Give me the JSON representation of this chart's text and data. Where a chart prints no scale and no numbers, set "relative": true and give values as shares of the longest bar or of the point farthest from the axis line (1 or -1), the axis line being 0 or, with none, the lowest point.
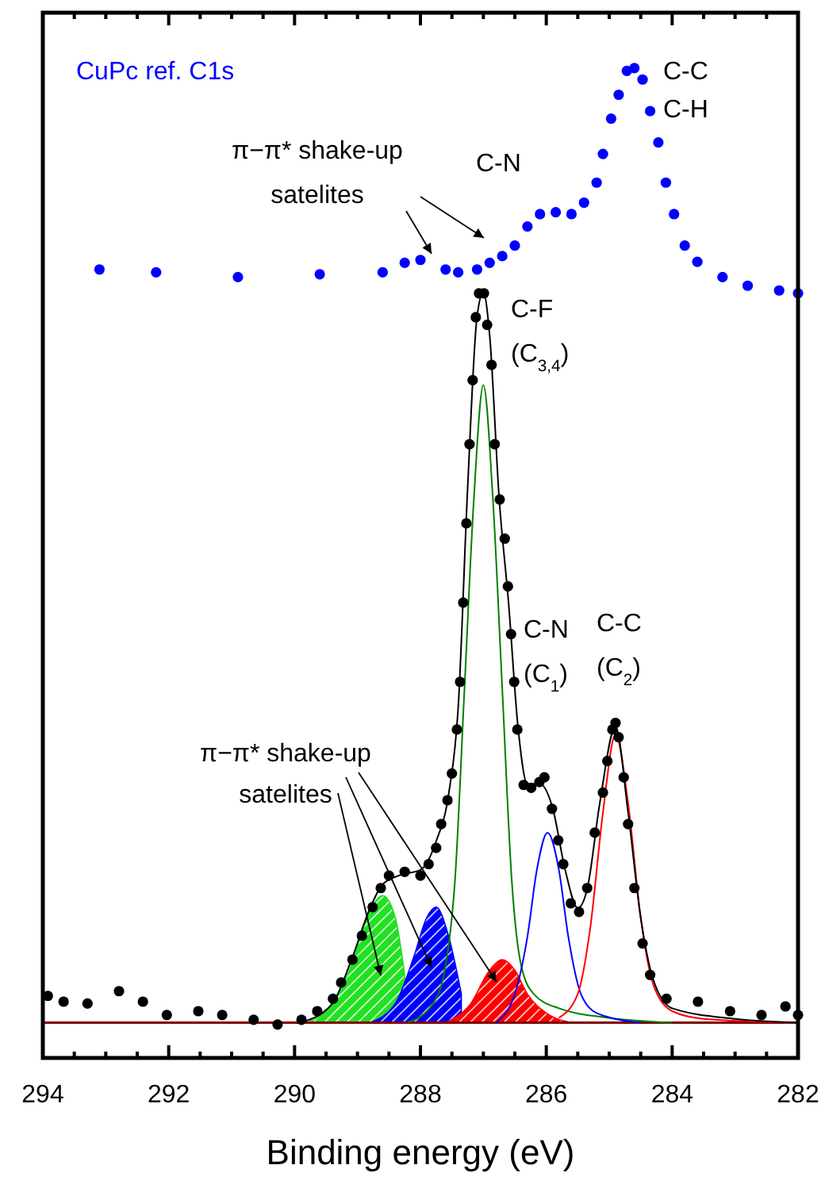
{
  "chart_data": {
    "type": "scatter",
    "relative": true,
    "xlabel": "Binding energy (eV)",
    "xlim": [
      294,
      282
    ],
    "xticks": [
      294,
      292,
      290,
      288,
      286,
      284,
      282
    ],
    "ref_lines": [
      {
        "axis": "y",
        "value": 0,
        "color": "#800000"
      }
    ],
    "series": [
      {
        "name": "CuPc ref. C1s",
        "type": "scatter",
        "marker": "circle",
        "color": "#0000ff",
        "x": [
          293.1,
          292.2,
          290.9,
          289.6,
          288.6,
          288.25,
          288.0,
          287.6,
          287.4,
          287.1,
          286.9,
          286.7,
          286.5,
          286.3,
          286.1,
          285.85,
          285.6,
          285.4,
          285.2,
          285.1,
          284.97,
          284.85,
          284.72,
          284.6,
          284.47,
          284.35,
          284.22,
          284.1,
          283.97,
          283.8,
          283.6,
          283.2,
          282.8,
          282.3,
          282.0
        ],
        "values": [
          0.789,
          0.786,
          0.781,
          0.784,
          0.786,
          0.796,
          0.799,
          0.789,
          0.786,
          0.789,
          0.796,
          0.803,
          0.814,
          0.834,
          0.847,
          0.849,
          0.847,
          0.859,
          0.88,
          0.91,
          0.947,
          0.972,
          0.997,
          1.0,
          0.988,
          0.955,
          0.922,
          0.88,
          0.847,
          0.814,
          0.797,
          0.781,
          0.772,
          0.767,
          0.764
        ]
      },
      {
        "type": "area",
        "color": "#22e022",
        "x": [
          289.8,
          289.4,
          289.1,
          288.85,
          288.6,
          288.4,
          288.25
        ],
        "values": [
          0,
          0.02,
          0.06,
          0.11,
          0.133,
          0.11,
          0.05
        ]
      },
      {
        "type": "area",
        "color": "#0000ff",
        "x": [
          288.8,
          288.4,
          288.1,
          287.9,
          287.75,
          287.55,
          287.35
        ],
        "values": [
          0,
          0.02,
          0.07,
          0.11,
          0.121,
          0.09,
          0.03
        ]
      },
      {
        "type": "area",
        "color": "#ff0000",
        "x": [
          287.6,
          287.2,
          286.9,
          286.7,
          286.5,
          286.3,
          286.0,
          285.6
        ],
        "values": [
          0,
          0.02,
          0.055,
          0.066,
          0.055,
          0.03,
          0.01,
          0
        ]
      },
      {
        "type": "line",
        "marker": "none",
        "color": "#008000",
        "x": [
          288.2,
          287.8,
          287.6,
          287.45,
          287.3,
          287.15,
          287.0,
          286.85,
          286.7,
          286.55,
          286.4,
          286.2,
          285.8,
          285.0,
          284.0
        ],
        "values": [
          0,
          0.02,
          0.06,
          0.15,
          0.35,
          0.55,
          0.668,
          0.55,
          0.35,
          0.15,
          0.06,
          0.03,
          0.015,
          0.005,
          0
        ]
      },
      {
        "type": "line",
        "marker": "none",
        "color": "#0000ff",
        "x": [
          286.8,
          286.5,
          286.3,
          286.15,
          285.98,
          285.8,
          285.65,
          285.45,
          285.2,
          284.5
        ],
        "values": [
          0,
          0.03,
          0.09,
          0.16,
          0.199,
          0.16,
          0.09,
          0.03,
          0.01,
          0
        ]
      },
      {
        "type": "line",
        "marker": "none",
        "color": "#ff0000",
        "x": [
          285.8,
          285.5,
          285.3,
          285.1,
          284.9,
          284.7,
          284.5,
          284.3,
          284.0,
          283.5,
          282.0
        ],
        "values": [
          0.005,
          0.03,
          0.1,
          0.22,
          0.302,
          0.23,
          0.11,
          0.04,
          0.012,
          0.004,
          0
        ]
      },
      {
        "type": "line",
        "marker": "none",
        "color": "#000000",
        "x": [
          289.9,
          289.4,
          289.1,
          288.8,
          288.6,
          288.3,
          288.0,
          287.75,
          287.55,
          287.4,
          287.25,
          287.1,
          287.0,
          286.9,
          286.75,
          286.6,
          286.45,
          286.3,
          286.1,
          285.9,
          285.7,
          285.5,
          285.35,
          285.15,
          284.9,
          284.7,
          284.5,
          284.3,
          284.0,
          283.0,
          282.0
        ],
        "values": [
          0,
          0.02,
          0.065,
          0.12,
          0.145,
          0.155,
          0.16,
          0.19,
          0.24,
          0.33,
          0.56,
          0.74,
          0.765,
          0.72,
          0.55,
          0.44,
          0.31,
          0.25,
          0.25,
          0.225,
          0.16,
          0.12,
          0.14,
          0.23,
          0.31,
          0.22,
          0.11,
          0.045,
          0.015,
          0.004,
          0
        ]
      },
      {
        "type": "scatter",
        "marker": "circle",
        "color": "#000000",
        "x": [
          293.92,
          293.67,
          293.29,
          292.79,
          292.41,
          292.03,
          291.53,
          291.15,
          290.65,
          290.27,
          289.89,
          289.64,
          289.39,
          289.26,
          289.08,
          288.93,
          288.76,
          288.63,
          288.5,
          288.25,
          288.0,
          287.87,
          287.75,
          287.67,
          287.57,
          287.5,
          287.42,
          287.37,
          287.32,
          287.27,
          287.22,
          287.17,
          287.12,
          287.07,
          286.99,
          286.94,
          286.87,
          286.82,
          286.74,
          286.66,
          286.61,
          286.56,
          286.51,
          286.46,
          286.36,
          286.24,
          286.11,
          286.03,
          285.91,
          285.81,
          285.73,
          285.61,
          285.48,
          285.35,
          285.23,
          285.1,
          285.03,
          284.95,
          284.9,
          284.85,
          284.77,
          284.7,
          284.6,
          284.47,
          284.35,
          284.09,
          283.59,
          283.08,
          282.58,
          282.2,
          282.0
        ],
        "values": [
          0.028,
          0.022,
          0.02,
          0.033,
          0.022,
          0.008,
          0.012,
          0.008,
          0.003,
          -0.002,
          0.003,
          0.012,
          0.025,
          0.042,
          0.066,
          0.091,
          0.121,
          0.141,
          0.154,
          0.158,
          0.154,
          0.166,
          0.183,
          0.208,
          0.233,
          0.261,
          0.307,
          0.357,
          0.44,
          0.523,
          0.606,
          0.673,
          0.739,
          0.764,
          0.764,
          0.731,
          0.689,
          0.606,
          0.548,
          0.507,
          0.457,
          0.407,
          0.357,
          0.307,
          0.249,
          0.246,
          0.252,
          0.257,
          0.224,
          0.191,
          0.166,
          0.125,
          0.116,
          0.141,
          0.199,
          0.241,
          0.274,
          0.307,
          0.314,
          0.299,
          0.257,
          0.208,
          0.141,
          0.083,
          0.05,
          0.025,
          0.022,
          0.012,
          0.008,
          0.017,
          0.008
        ]
      }
    ],
    "annotations": [
      "C-C\nC-H",
      "C-N",
      "π−π* shake-up\nsatelites",
      "C-F\n(C$_{3,4}$)",
      "C-N\n(C$_{1}$)",
      "C-C\n(C$_{2}$)",
      "π−π* shake-up\nsatelites"
    ]
  }
}
